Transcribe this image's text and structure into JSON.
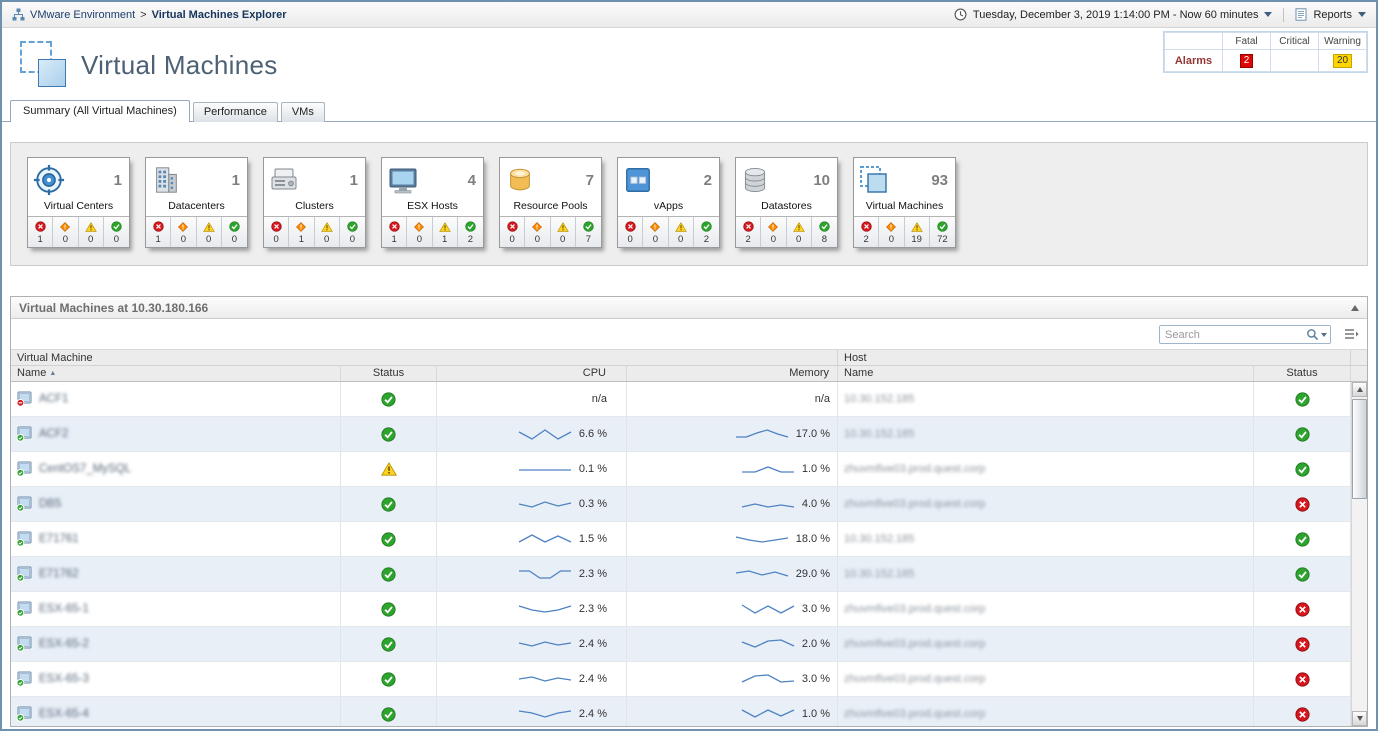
{
  "colors": {
    "fatal": "#d6171e",
    "critical": "#ff8c00",
    "warning": "#ffd21e",
    "normal": "#2ea32e",
    "sparkline": "#4d82c3"
  },
  "breadcrumb": {
    "root": "VMware Environment",
    "separator": ">",
    "current": "Virtual Machines Explorer"
  },
  "topbar": {
    "time_range": "Tuesday, December 3, 2019 1:14:00 PM - Now 60 minutes",
    "reports": "Reports"
  },
  "header": {
    "title": "Virtual Machines",
    "alarms": {
      "row_label": "Alarms",
      "columns": [
        "Fatal",
        "Critical",
        "Warning"
      ],
      "counts": {
        "fatal": "2",
        "critical": "",
        "warning": "20"
      }
    }
  },
  "tabs": [
    {
      "label": "Summary (All Virtual Machines)",
      "active": true
    },
    {
      "label": "Performance",
      "active": false
    },
    {
      "label": "VMs",
      "active": false
    }
  ],
  "tiles": [
    {
      "icon": "virtual-center-icon",
      "label": "Virtual Centers",
      "count": "1",
      "statuses": [
        "1",
        "0",
        "0",
        "0"
      ]
    },
    {
      "icon": "datacenter-icon",
      "label": "Datacenters",
      "count": "1",
      "statuses": [
        "1",
        "0",
        "0",
        "0"
      ]
    },
    {
      "icon": "cluster-icon",
      "label": "Clusters",
      "count": "1",
      "statuses": [
        "0",
        "1",
        "0",
        "0"
      ]
    },
    {
      "icon": "esx-host-icon",
      "label": "ESX Hosts",
      "count": "4",
      "statuses": [
        "1",
        "0",
        "1",
        "2"
      ]
    },
    {
      "icon": "resource-pool-icon",
      "label": "Resource Pools",
      "count": "7",
      "statuses": [
        "0",
        "0",
        "0",
        "7"
      ]
    },
    {
      "icon": "vapp-icon",
      "label": "vApps",
      "count": "2",
      "statuses": [
        "0",
        "0",
        "0",
        "2"
      ]
    },
    {
      "icon": "datastore-icon",
      "label": "Datastores",
      "count": "10",
      "statuses": [
        "2",
        "0",
        "0",
        "8"
      ]
    },
    {
      "icon": "virtual-machine-icon",
      "label": "Virtual Machines",
      "count": "93",
      "statuses": [
        "2",
        "0",
        "19",
        "72"
      ]
    }
  ],
  "panel": {
    "title": "Virtual Machines at 10.30.180.166",
    "search_placeholder": "Search"
  },
  "table": {
    "groups": [
      "Virtual Machine",
      "Host"
    ],
    "columns": {
      "name": "Name",
      "status": "Status",
      "cpu": "CPU",
      "memory": "Memory",
      "host_name": "Name",
      "host_status": "Status"
    },
    "sort_column": "Name",
    "sort_direction": "asc",
    "rows": [
      {
        "name": "ACF1",
        "vm_state": "stopped",
        "status": "normal",
        "cpu": "n/a",
        "cpu_spark": [],
        "memory": "n/a",
        "memory_spark": [],
        "host": "10.30.152.185",
        "host_status": "normal"
      },
      {
        "name": "ACF2",
        "vm_state": "running",
        "status": "normal",
        "cpu": "6.6 %",
        "cpu_spark": [
          5,
          12,
          3,
          12,
          5
        ],
        "memory": "17.0 %",
        "memory_spark": [
          10,
          10,
          6,
          3,
          7,
          10
        ],
        "host": "10.30.152.185",
        "host_status": "normal"
      },
      {
        "name": "CentOS7_MySQL",
        "vm_state": "running",
        "status": "warning",
        "cpu": "0.1 %",
        "cpu_spark": [
          8,
          8,
          8,
          8,
          8
        ],
        "memory": "1.0 %",
        "memory_spark": [
          10,
          10,
          5,
          10,
          10
        ],
        "host": "zhuvmfive03.prod.quest.corp",
        "host_status": "normal"
      },
      {
        "name": "DB5",
        "vm_state": "running",
        "status": "normal",
        "cpu": "0.3 %",
        "cpu_spark": [
          7,
          10,
          5,
          9,
          6
        ],
        "memory": "4.0 %",
        "memory_spark": [
          10,
          7,
          10,
          8,
          10
        ],
        "host": "zhuvmfive03.prod.quest.corp",
        "host_status": "fatal"
      },
      {
        "name": "E71761",
        "vm_state": "running",
        "status": "normal",
        "cpu": "1.5 %",
        "cpu_spark": [
          10,
          3,
          10,
          4,
          10
        ],
        "memory": "18.0 %",
        "memory_spark": [
          5,
          8,
          10,
          8,
          6
        ],
        "host": "10.30.152.185",
        "host_status": "normal"
      },
      {
        "name": "E71762",
        "vm_state": "running",
        "status": "normal",
        "cpu": "2.3 %",
        "cpu_spark": [
          4,
          4,
          11,
          11,
          4,
          4
        ],
        "memory": "29.0 %",
        "memory_spark": [
          6,
          4,
          8,
          5,
          9
        ],
        "host": "10.30.152.185",
        "host_status": "normal"
      },
      {
        "name": "ESX-65-1",
        "vm_state": "running",
        "status": "normal",
        "cpu": "2.3 %",
        "cpu_spark": [
          4,
          8,
          10,
          8,
          4
        ],
        "memory": "3.0 %",
        "memory_spark": [
          3,
          11,
          4,
          11,
          4
        ],
        "host": "zhuvmfive03.prod.quest.corp",
        "host_status": "fatal"
      },
      {
        "name": "ESX-65-2",
        "vm_state": "running",
        "status": "normal",
        "cpu": "2.4 %",
        "cpu_spark": [
          6,
          9,
          5,
          8,
          6
        ],
        "memory": "2.0 %",
        "memory_spark": [
          5,
          10,
          4,
          3,
          9
        ],
        "host": "zhuvmfive03.prod.quest.corp",
        "host_status": "fatal"
      },
      {
        "name": "ESX-65-3",
        "vm_state": "running",
        "status": "normal",
        "cpu": "2.4 %",
        "cpu_spark": [
          7,
          5,
          9,
          6,
          8
        ],
        "memory": "3.0 %",
        "memory_spark": [
          10,
          4,
          3,
          10,
          9
        ],
        "host": "zhuvmfive03.prod.quest.corp",
        "host_status": "fatal"
      },
      {
        "name": "ESX-65-4",
        "vm_state": "running",
        "status": "normal",
        "cpu": "2.4 %",
        "cpu_spark": [
          4,
          6,
          10,
          6,
          4
        ],
        "memory": "1.0 %",
        "memory_spark": [
          3,
          10,
          3,
          9,
          3
        ],
        "host": "zhuvmfive03.prod.quest.corp",
        "host_status": "fatal"
      }
    ]
  }
}
